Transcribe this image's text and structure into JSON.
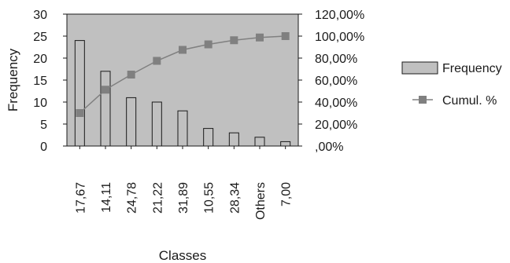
{
  "chart_data": {
    "type": "bar",
    "categories": [
      "17,67",
      "14,11",
      "24,78",
      "21,22",
      "31,89",
      "10,55",
      "28,34",
      "Others",
      "7,00"
    ],
    "series": [
      {
        "name": "Frequency",
        "type": "bar",
        "axis": "left",
        "values": [
          24,
          17,
          11,
          10,
          8,
          4,
          3,
          2,
          1
        ],
        "color": "#c0c0c0"
      },
      {
        "name": "Cumul. %",
        "type": "line",
        "axis": "right",
        "values": [
          30.0,
          51.25,
          65.0,
          77.5,
          87.5,
          92.5,
          96.25,
          98.75,
          100.0
        ],
        "color": "#808080"
      }
    ],
    "xlabel": "Classes",
    "ylabel": "Frequency",
    "ylim": [
      0,
      30
    ],
    "y_ticks": [
      "0",
      "5",
      "10",
      "15",
      "20",
      "25",
      "30"
    ],
    "y2lim": [
      0,
      120
    ],
    "y2_ticks": [
      ",00%",
      "20,00%",
      "40,00%",
      "60,00%",
      "80,00%",
      "100,00%",
      "120,00%"
    ],
    "plot_background": "#c0c0c0",
    "grid": false,
    "legend_position": "right"
  }
}
